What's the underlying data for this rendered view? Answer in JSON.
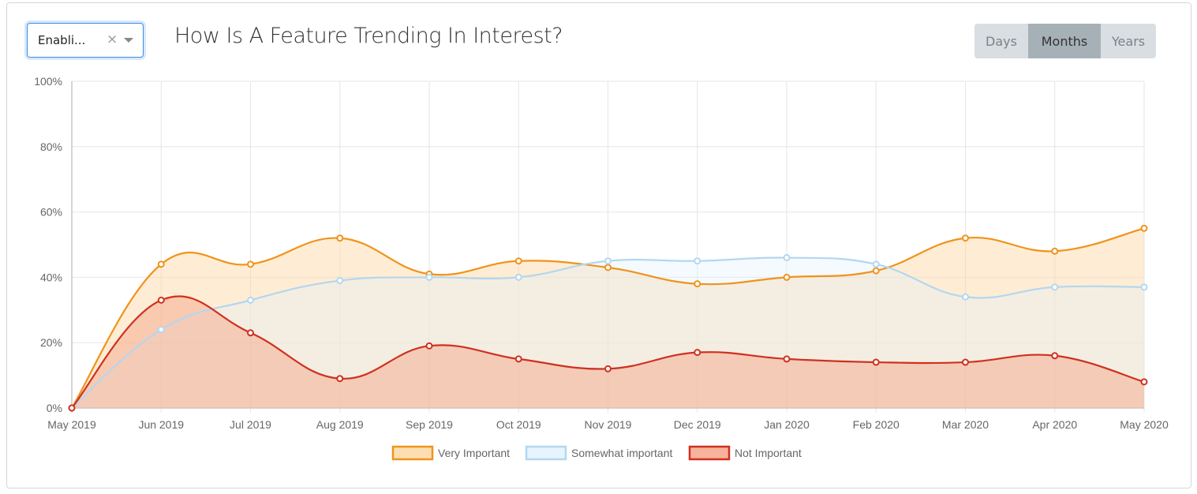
{
  "filter": {
    "value": "Enabli...",
    "clear_icon": "×"
  },
  "title": "How Is A Feature Trending In Interest?",
  "range_toggle": {
    "options": [
      "Days",
      "Months",
      "Years"
    ],
    "selected": "Months"
  },
  "chart_data": {
    "type": "line",
    "title": "How Is A Feature Trending In Interest?",
    "x": [
      "May 2019",
      "Jun 2019",
      "Jul 2019",
      "Aug 2019",
      "Sep 2019",
      "Oct 2019",
      "Nov 2019",
      "Dec 2019",
      "Jan 2020",
      "Feb 2020",
      "Mar 2020",
      "Apr 2020",
      "May 2020"
    ],
    "ylim": [
      0,
      100
    ],
    "yticks": [
      "0%",
      "20%",
      "40%",
      "60%",
      "80%",
      "100%"
    ],
    "ytick_values": [
      0,
      20,
      40,
      60,
      80,
      100
    ],
    "grid": true,
    "legend": "bottom",
    "series": [
      {
        "name": "Very Important",
        "color": "#f0931c",
        "fill": "rgba(252,214,160,0.45)",
        "values": [
          0,
          44,
          44,
          52,
          41,
          45,
          43,
          38,
          40,
          42,
          52,
          48,
          55
        ]
      },
      {
        "name": "Somewhat important",
        "color": "#b3d7f0",
        "fill": "rgba(225,240,252,0.35)",
        "values": [
          0,
          24,
          33,
          39,
          40,
          40,
          45,
          45,
          46,
          44,
          34,
          37,
          37
        ]
      },
      {
        "name": "Not Important",
        "color": "#d03020",
        "fill": "rgba(245,160,130,0.45)",
        "values": [
          0,
          33,
          23,
          9,
          19,
          15,
          12,
          17,
          15,
          14,
          14,
          16,
          8
        ]
      }
    ]
  }
}
